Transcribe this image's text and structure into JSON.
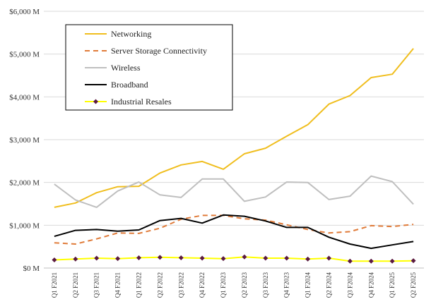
{
  "chart_data": {
    "type": "line",
    "title": "",
    "xlabel": "",
    "ylabel": "",
    "ylim": [
      0,
      6000
    ],
    "y_ticks": [
      0,
      1000,
      2000,
      3000,
      4000,
      5000,
      6000
    ],
    "y_tick_labels": [
      "$0 M",
      "$1,000 M",
      "$2,000 M",
      "$3,000 M",
      "$4,000 M",
      "$5,000 M",
      "$6,000 M"
    ],
    "grid": "horizontal",
    "legend_position": "top-left",
    "categories": [
      "Q1 F2021",
      "Q2 F2021",
      "Q3 F2021",
      "Q4 F2021",
      "Q1 F2022",
      "Q2 F2022",
      "Q3 F2022",
      "Q4 F2022",
      "Q1 F2023",
      "Q2 F2023",
      "Q3 F2023",
      "Q4 F2023",
      "Q1 F2024",
      "Q2 F2024",
      "Q3 F2024",
      "Q4 F2024",
      "Q1 F2025",
      "Q2 F2025"
    ],
    "series": [
      {
        "name": "Networking",
        "color": "#F0BE1E",
        "style": "solid",
        "values": [
          1420,
          1520,
          1760,
          1900,
          1910,
          2220,
          2410,
          2490,
          2310,
          2670,
          2800,
          3080,
          3350,
          3830,
          4030,
          4450,
          4530,
          5130
        ]
      },
      {
        "name": "Server Storage Connectivity",
        "color": "#E07B39",
        "style": "dashed",
        "values": [
          590,
          560,
          680,
          820,
          810,
          930,
          1140,
          1230,
          1230,
          1150,
          1120,
          1010,
          900,
          820,
          850,
          990,
          970,
          1020
        ]
      },
      {
        "name": "Wireless",
        "color": "#BFBFBF",
        "style": "solid",
        "values": [
          1960,
          1590,
          1420,
          1800,
          2010,
          1710,
          1650,
          2080,
          2080,
          1560,
          1660,
          2010,
          2000,
          1600,
          1680,
          2150,
          2020,
          1490
        ]
      },
      {
        "name": "Broadband",
        "color": "#000000",
        "style": "solid",
        "values": [
          740,
          880,
          900,
          860,
          890,
          1110,
          1160,
          1050,
          1240,
          1210,
          1100,
          950,
          950,
          720,
          560,
          460,
          540,
          620
        ]
      },
      {
        "name": "Industrial Resales",
        "color": "#FFFF00",
        "style": "solid",
        "marker": "diamond",
        "marker_color": "#5B1A40",
        "values": [
          190,
          210,
          230,
          220,
          240,
          250,
          240,
          230,
          220,
          260,
          230,
          230,
          210,
          230,
          160,
          160,
          160,
          170
        ]
      }
    ]
  }
}
